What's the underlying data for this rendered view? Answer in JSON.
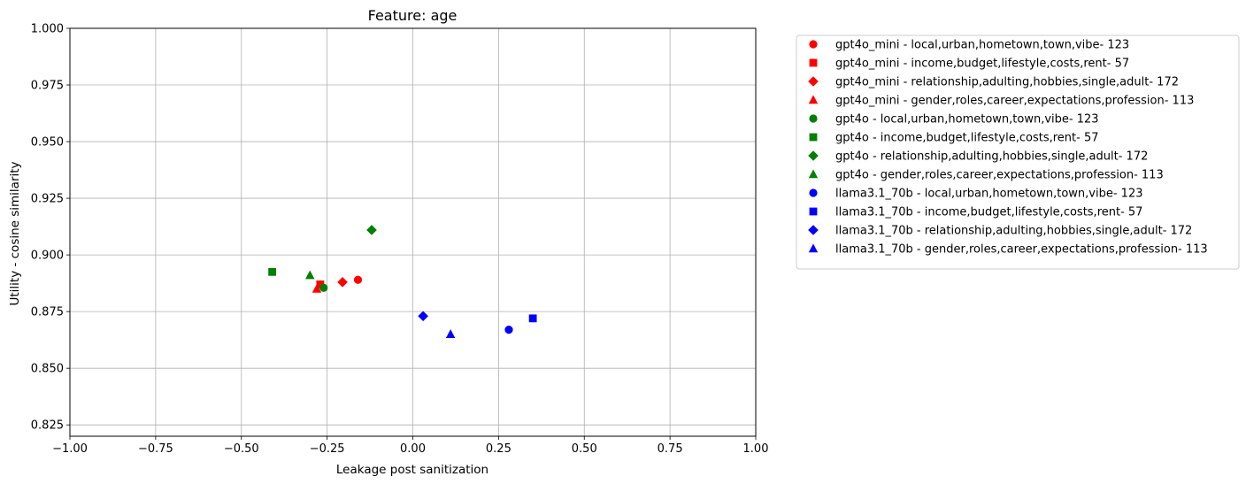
{
  "chart_data": {
    "type": "scatter",
    "title": "Feature: age",
    "xlabel": "Leakage post sanitization",
    "ylabel": "Utility - cosine similarity",
    "xlim": [
      -1.0,
      1.0
    ],
    "ylim": [
      0.82,
      1.0
    ],
    "x_ticks": [
      -1.0,
      -0.75,
      -0.5,
      -0.25,
      0.0,
      0.25,
      0.5,
      0.75,
      1.0
    ],
    "x_tick_labels": [
      "−1.00",
      "−0.75",
      "−0.50",
      "−0.25",
      "0.00",
      "0.25",
      "0.50",
      "0.75",
      "1.00"
    ],
    "y_ticks": [
      0.825,
      0.85,
      0.875,
      0.9,
      0.925,
      0.95,
      0.975,
      1.0
    ],
    "y_tick_labels": [
      "0.825",
      "0.850",
      "0.875",
      "0.900",
      "0.925",
      "0.950",
      "0.975",
      "1.000"
    ],
    "grid": true,
    "legend_position": "outside-right-top",
    "series": [
      {
        "name": "gpt4o_mini - local,urban,hometown,town,vibe- 123",
        "color": "#ff0000",
        "marker": "circle",
        "x": -0.16,
        "y": 0.889
      },
      {
        "name": "gpt4o_mini - income,budget,lifestyle,costs,rent- 57",
        "color": "#ff0000",
        "marker": "square",
        "x": -0.27,
        "y": 0.887
      },
      {
        "name": "gpt4o_mini - relationship,adulting,hobbies,single,adult- 172",
        "color": "#ff0000",
        "marker": "diamond",
        "x": -0.205,
        "y": 0.888
      },
      {
        "name": "gpt4o_mini - gender,roles,career,expectations,profession- 113",
        "color": "#ff0000",
        "marker": "triangle",
        "x": -0.28,
        "y": 0.885
      },
      {
        "name": "gpt4o - local,urban,hometown,town,vibe- 123",
        "color": "#008000",
        "marker": "circle",
        "x": -0.26,
        "y": 0.8855
      },
      {
        "name": "gpt4o - income,budget,lifestyle,costs,rent- 57",
        "color": "#008000",
        "marker": "square",
        "x": -0.41,
        "y": 0.8925
      },
      {
        "name": "gpt4o - relationship,adulting,hobbies,single,adult- 172",
        "color": "#008000",
        "marker": "diamond",
        "x": -0.12,
        "y": 0.911
      },
      {
        "name": "gpt4o - gender,roles,career,expectations,profession- 113",
        "color": "#008000",
        "marker": "triangle",
        "x": -0.3,
        "y": 0.891
      },
      {
        "name": "llama3.1_70b - local,urban,hometown,town,vibe- 123",
        "color": "#0000ff",
        "marker": "circle",
        "x": 0.28,
        "y": 0.867
      },
      {
        "name": "llama3.1_70b - income,budget,lifestyle,costs,rent- 57",
        "color": "#0000ff",
        "marker": "square",
        "x": 0.35,
        "y": 0.872
      },
      {
        "name": "llama3.1_70b - relationship,adulting,hobbies,single,adult- 172",
        "color": "#0000ff",
        "marker": "diamond",
        "x": 0.03,
        "y": 0.873
      },
      {
        "name": "llama3.1_70b - gender,roles,career,expectations,profession- 113",
        "color": "#0000ff",
        "marker": "triangle",
        "x": 0.11,
        "y": 0.865
      }
    ]
  }
}
